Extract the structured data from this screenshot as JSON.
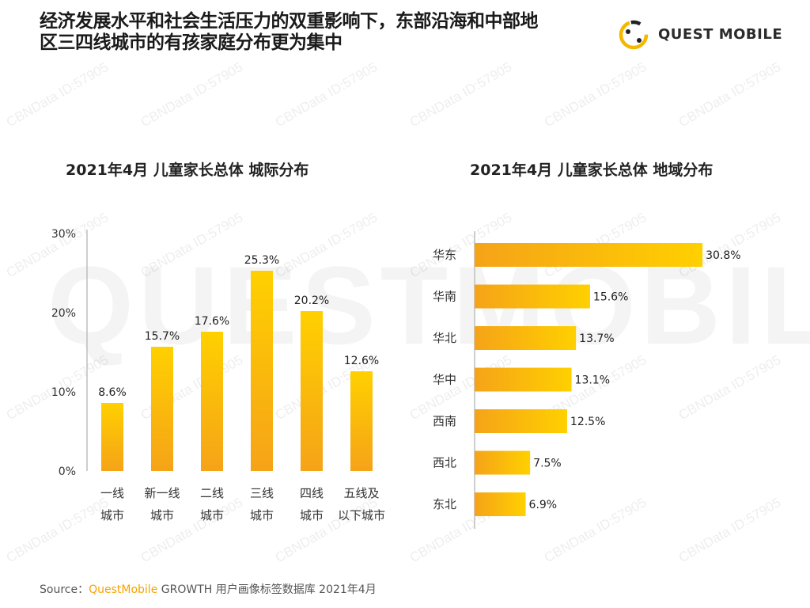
{
  "headline_line1": "经济发展水平和社会生活压力的双重影响下，东部沿海和中部地",
  "headline_line2": "区三四线城市的有孩家庭分布更为集中",
  "brand": {
    "name": "QUEST MOBILE",
    "icon": "questmobile-logo-icon"
  },
  "watermark": {
    "big_text": "QUESTMOBILE",
    "small_text": "CBNData ID:57905"
  },
  "colors": {
    "bar_top": "#ffd000",
    "bar_bottom": "#f5a318",
    "axis": "#bdbdbd",
    "brand_accent": "#f5a300"
  },
  "chart_data": [
    {
      "type": "bar",
      "title": "2021年4月 儿童家长总体 城际分布",
      "categories": [
        [
          "一线",
          "城市"
        ],
        [
          "新一线",
          "城市"
        ],
        [
          "二线",
          "城市"
        ],
        [
          "三线",
          "城市"
        ],
        [
          "四线",
          "城市"
        ],
        [
          "五线及",
          "以下城市"
        ]
      ],
      "values": [
        8.6,
        15.7,
        17.6,
        25.3,
        20.2,
        12.6
      ],
      "value_labels": [
        "8.6%",
        "15.7%",
        "17.6%",
        "25.3%",
        "20.2%",
        "12.6%"
      ],
      "yticks": [
        "0%",
        "10%",
        "20%",
        "30%"
      ],
      "ylim": [
        0,
        30
      ],
      "xlabel": "",
      "ylabel": ""
    },
    {
      "type": "bar",
      "orientation": "horizontal",
      "title": "2021年4月 儿童家长总体 地域分布",
      "categories": [
        "华东",
        "华南",
        "华北",
        "华中",
        "西南",
        "西北",
        "东北"
      ],
      "values": [
        30.8,
        15.6,
        13.7,
        13.1,
        12.5,
        7.5,
        6.9
      ],
      "value_labels": [
        "30.8%",
        "15.6%",
        "13.7%",
        "13.1%",
        "12.5%",
        "7.5%",
        "6.9%"
      ],
      "xlim": [
        0,
        31
      ]
    }
  ],
  "source": {
    "prefix": "Source：",
    "brand": "QuestMobile",
    "rest": " GROWTH 用户画像标签数据库 2021年4月"
  }
}
